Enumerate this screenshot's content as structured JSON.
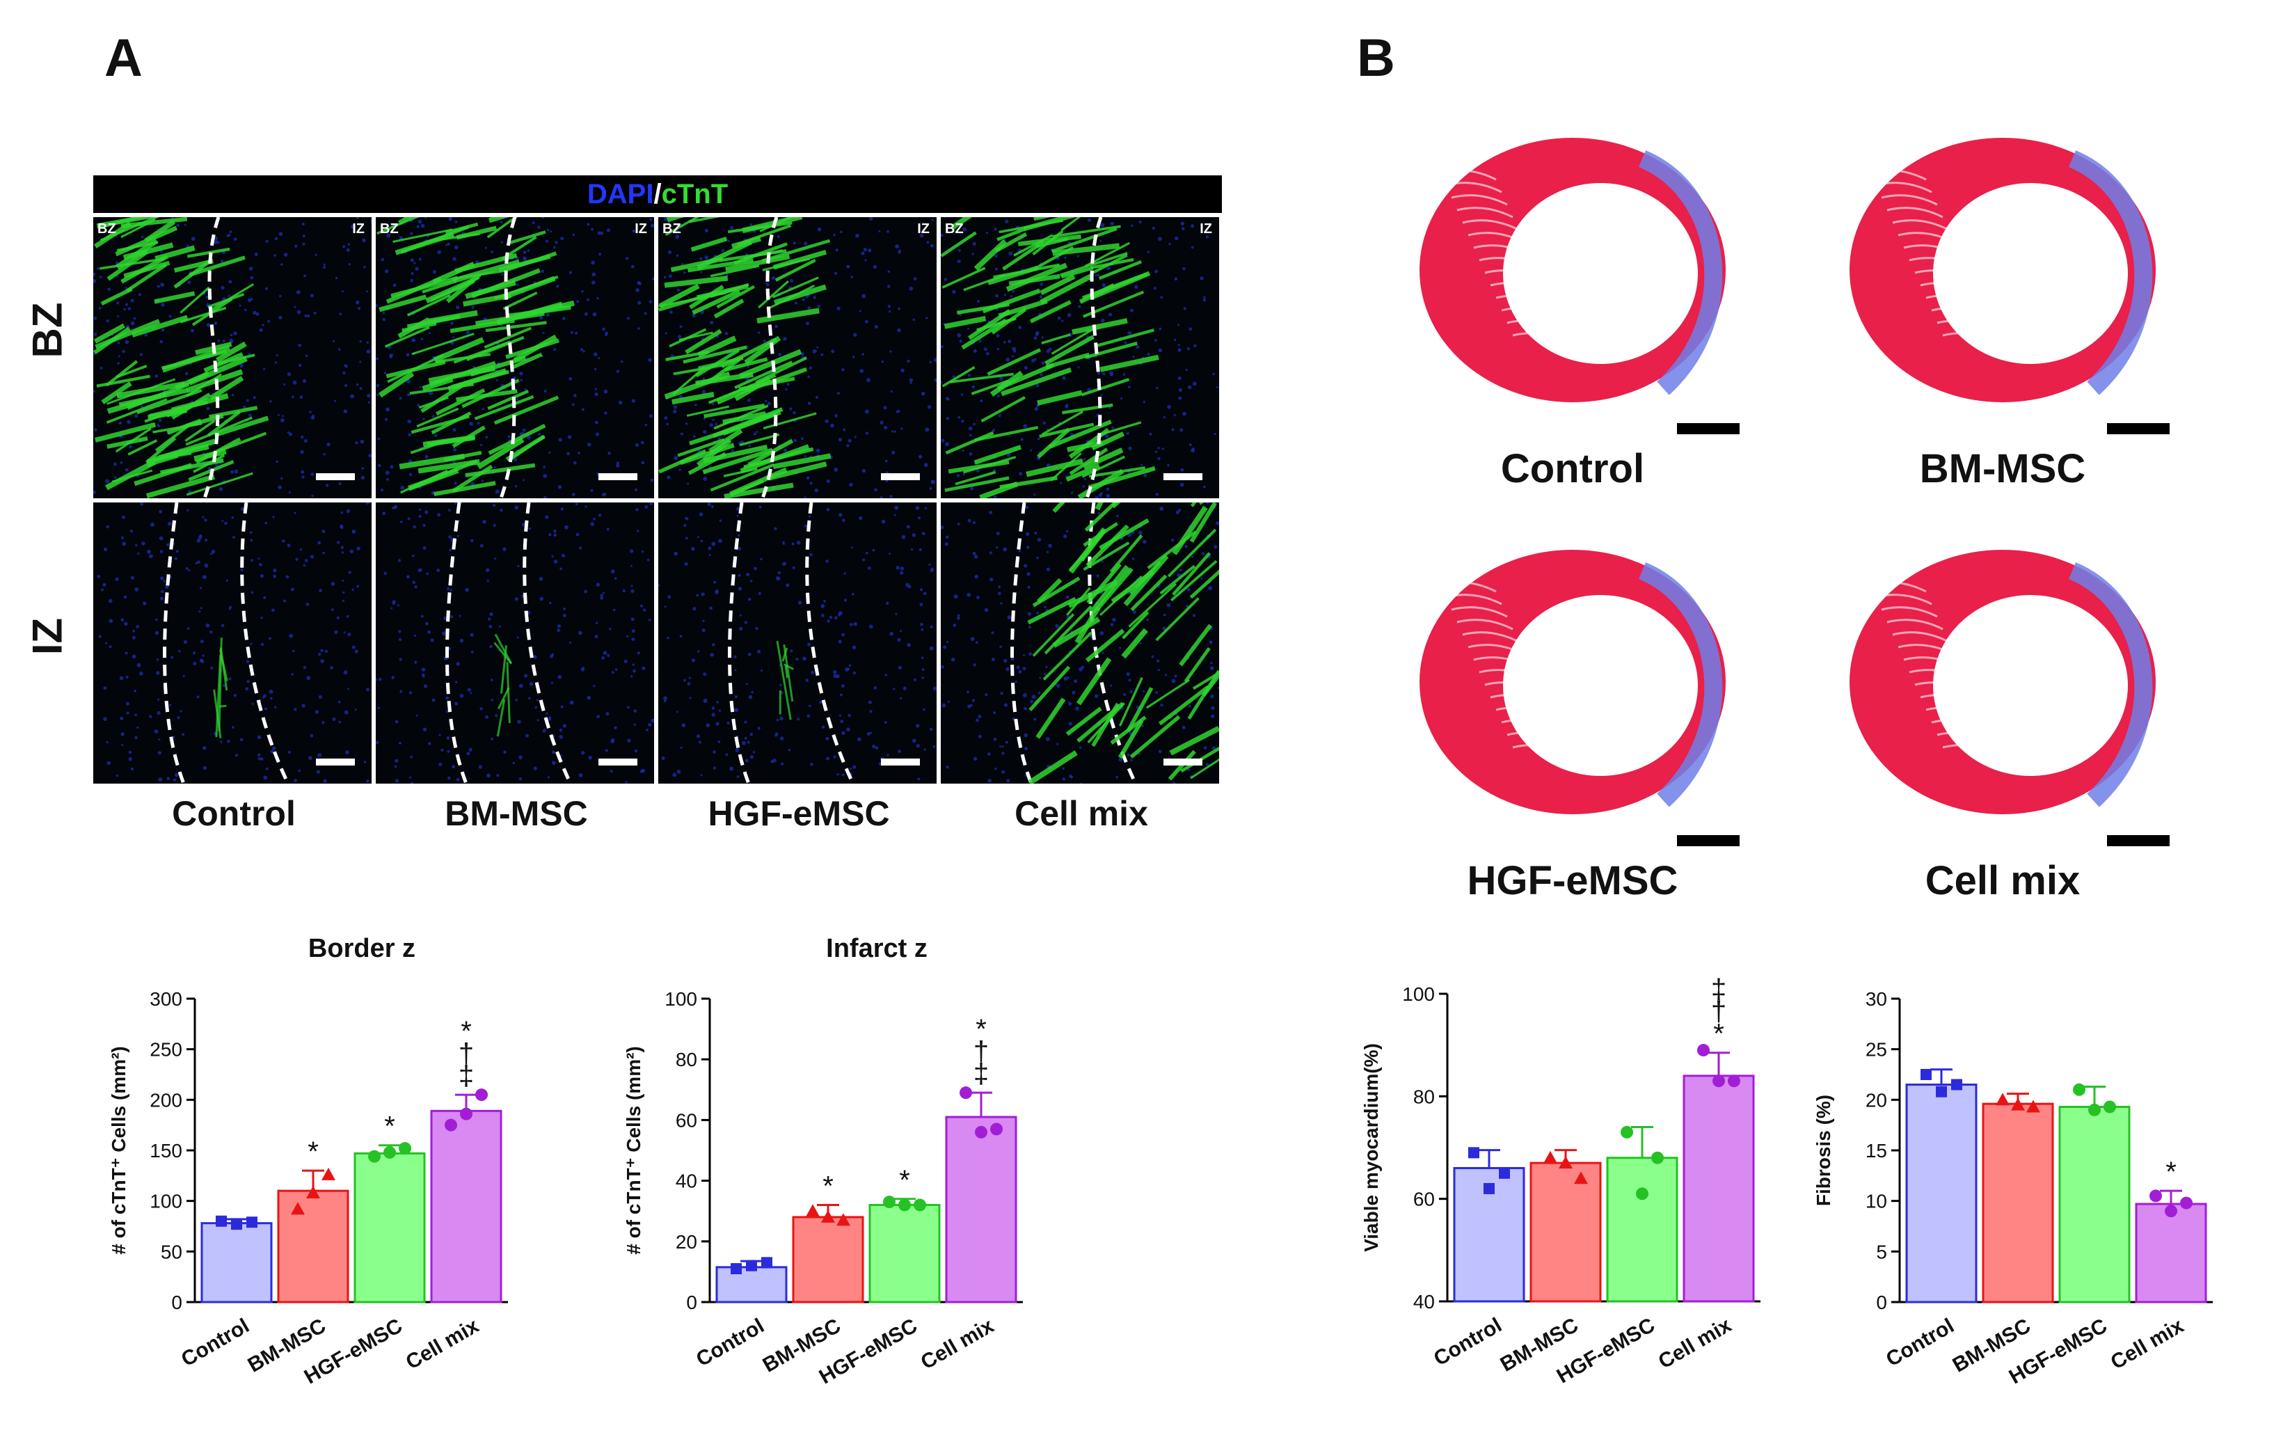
{
  "panels": {
    "a_label": "A",
    "b_label": "B"
  },
  "micrographs": {
    "stain_dapi": "DAPI",
    "stain_sep": "/",
    "stain_ctnt": "cTnT",
    "stain_dapi_color": "#2236ff",
    "stain_ctnt_color": "#33dd33",
    "row_labels": [
      "BZ",
      "IZ"
    ],
    "corner_left": "BZ",
    "corner_right": "IZ",
    "groups": [
      "Control",
      "BM-MSC",
      "HGF-eMSC",
      "Cell mix"
    ]
  },
  "hearts": {
    "labels": [
      "Control",
      "BM-MSC",
      "HGF-eMSC",
      "Cell mix"
    ]
  },
  "colors": {
    "Control": {
      "fill": "#bfc2ff",
      "stroke": "#2b2bdc"
    },
    "BM-MSC": {
      "fill": "#ff8585",
      "stroke": "#e81414"
    },
    "HGF-eMSC": {
      "fill": "#8bff8b",
      "stroke": "#25c125"
    },
    "Cell mix": {
      "fill": "#d889f2",
      "stroke": "#a21ed6"
    }
  },
  "chart_data": [
    {
      "type": "bar",
      "title": "Border z",
      "ylabel": "# of  cTnT⁺ Cells (mm²)",
      "categories": [
        "Control",
        "BM-MSC",
        "HGF-eMSC",
        "Cell mix"
      ],
      "values": [
        78,
        110,
        147,
        189
      ],
      "errors": [
        4,
        20,
        8,
        16
      ],
      "points": [
        [
          80,
          77,
          79
        ],
        [
          92,
          108,
          126
        ],
        [
          144,
          148,
          152
        ],
        [
          175,
          186,
          205
        ]
      ],
      "markers": [
        "square",
        "triangle",
        "circle",
        "circle"
      ],
      "ylim": [
        0,
        300
      ],
      "yticks": [
        0,
        50,
        100,
        150,
        200,
        250,
        300
      ],
      "significance": [
        "",
        "*",
        "*",
        "*\n†\n‡"
      ]
    },
    {
      "type": "bar",
      "title": "Infarct z",
      "ylabel": "# of  cTnT⁺ Cells (mm²)",
      "categories": [
        "Control",
        "BM-MSC",
        "HGF-eMSC",
        "Cell mix"
      ],
      "values": [
        11.5,
        28,
        32,
        61
      ],
      "errors": [
        2,
        4,
        2,
        8
      ],
      "points": [
        [
          11,
          12,
          13
        ],
        [
          30,
          28,
          27
        ],
        [
          33,
          32,
          32
        ],
        [
          69,
          56,
          57
        ]
      ],
      "markers": [
        "square",
        "triangle",
        "circle",
        "circle"
      ],
      "ylim": [
        0,
        100
      ],
      "yticks": [
        0,
        20,
        40,
        60,
        80,
        100
      ],
      "significance": [
        "",
        "*",
        "*",
        "*\n†\n‡"
      ]
    },
    {
      "type": "bar",
      "title": "",
      "ylabel": "Viable myocardium(%)",
      "categories": [
        "Control",
        "BM-MSC",
        "HGF-eMSC",
        "Cell mix"
      ],
      "values": [
        66,
        67,
        68,
        84
      ],
      "errors": [
        3.5,
        2.5,
        6,
        4.5
      ],
      "points": [
        [
          69,
          62,
          65
        ],
        [
          68,
          67,
          64
        ],
        [
          73,
          61,
          68
        ],
        [
          89,
          83,
          83
        ]
      ],
      "markers": [
        "square",
        "triangle",
        "circle",
        "circle"
      ],
      "ylim": [
        40,
        100
      ],
      "yticks": [
        40,
        60,
        80,
        100
      ],
      "significance": [
        "",
        "",
        "",
        "‡\n†\n*"
      ]
    },
    {
      "type": "bar",
      "title": "",
      "ylabel": "Fibrosis (%)",
      "categories": [
        "Control",
        "BM-MSC",
        "HGF-eMSC",
        "Cell mix"
      ],
      "values": [
        21.5,
        19.6,
        19.3,
        9.7
      ],
      "errors": [
        1.5,
        1,
        2,
        1.3
      ],
      "points": [
        [
          22.5,
          20.8,
          21.5
        ],
        [
          20,
          19.5,
          19.3
        ],
        [
          21,
          19,
          19.3
        ],
        [
          10.5,
          9,
          9.8
        ]
      ],
      "markers": [
        "square",
        "triangle",
        "circle",
        "circle"
      ],
      "ylim": [
        0,
        30
      ],
      "yticks": [
        0,
        5,
        10,
        15,
        20,
        25,
        30
      ],
      "significance": [
        "",
        "",
        "",
        "*"
      ]
    }
  ]
}
